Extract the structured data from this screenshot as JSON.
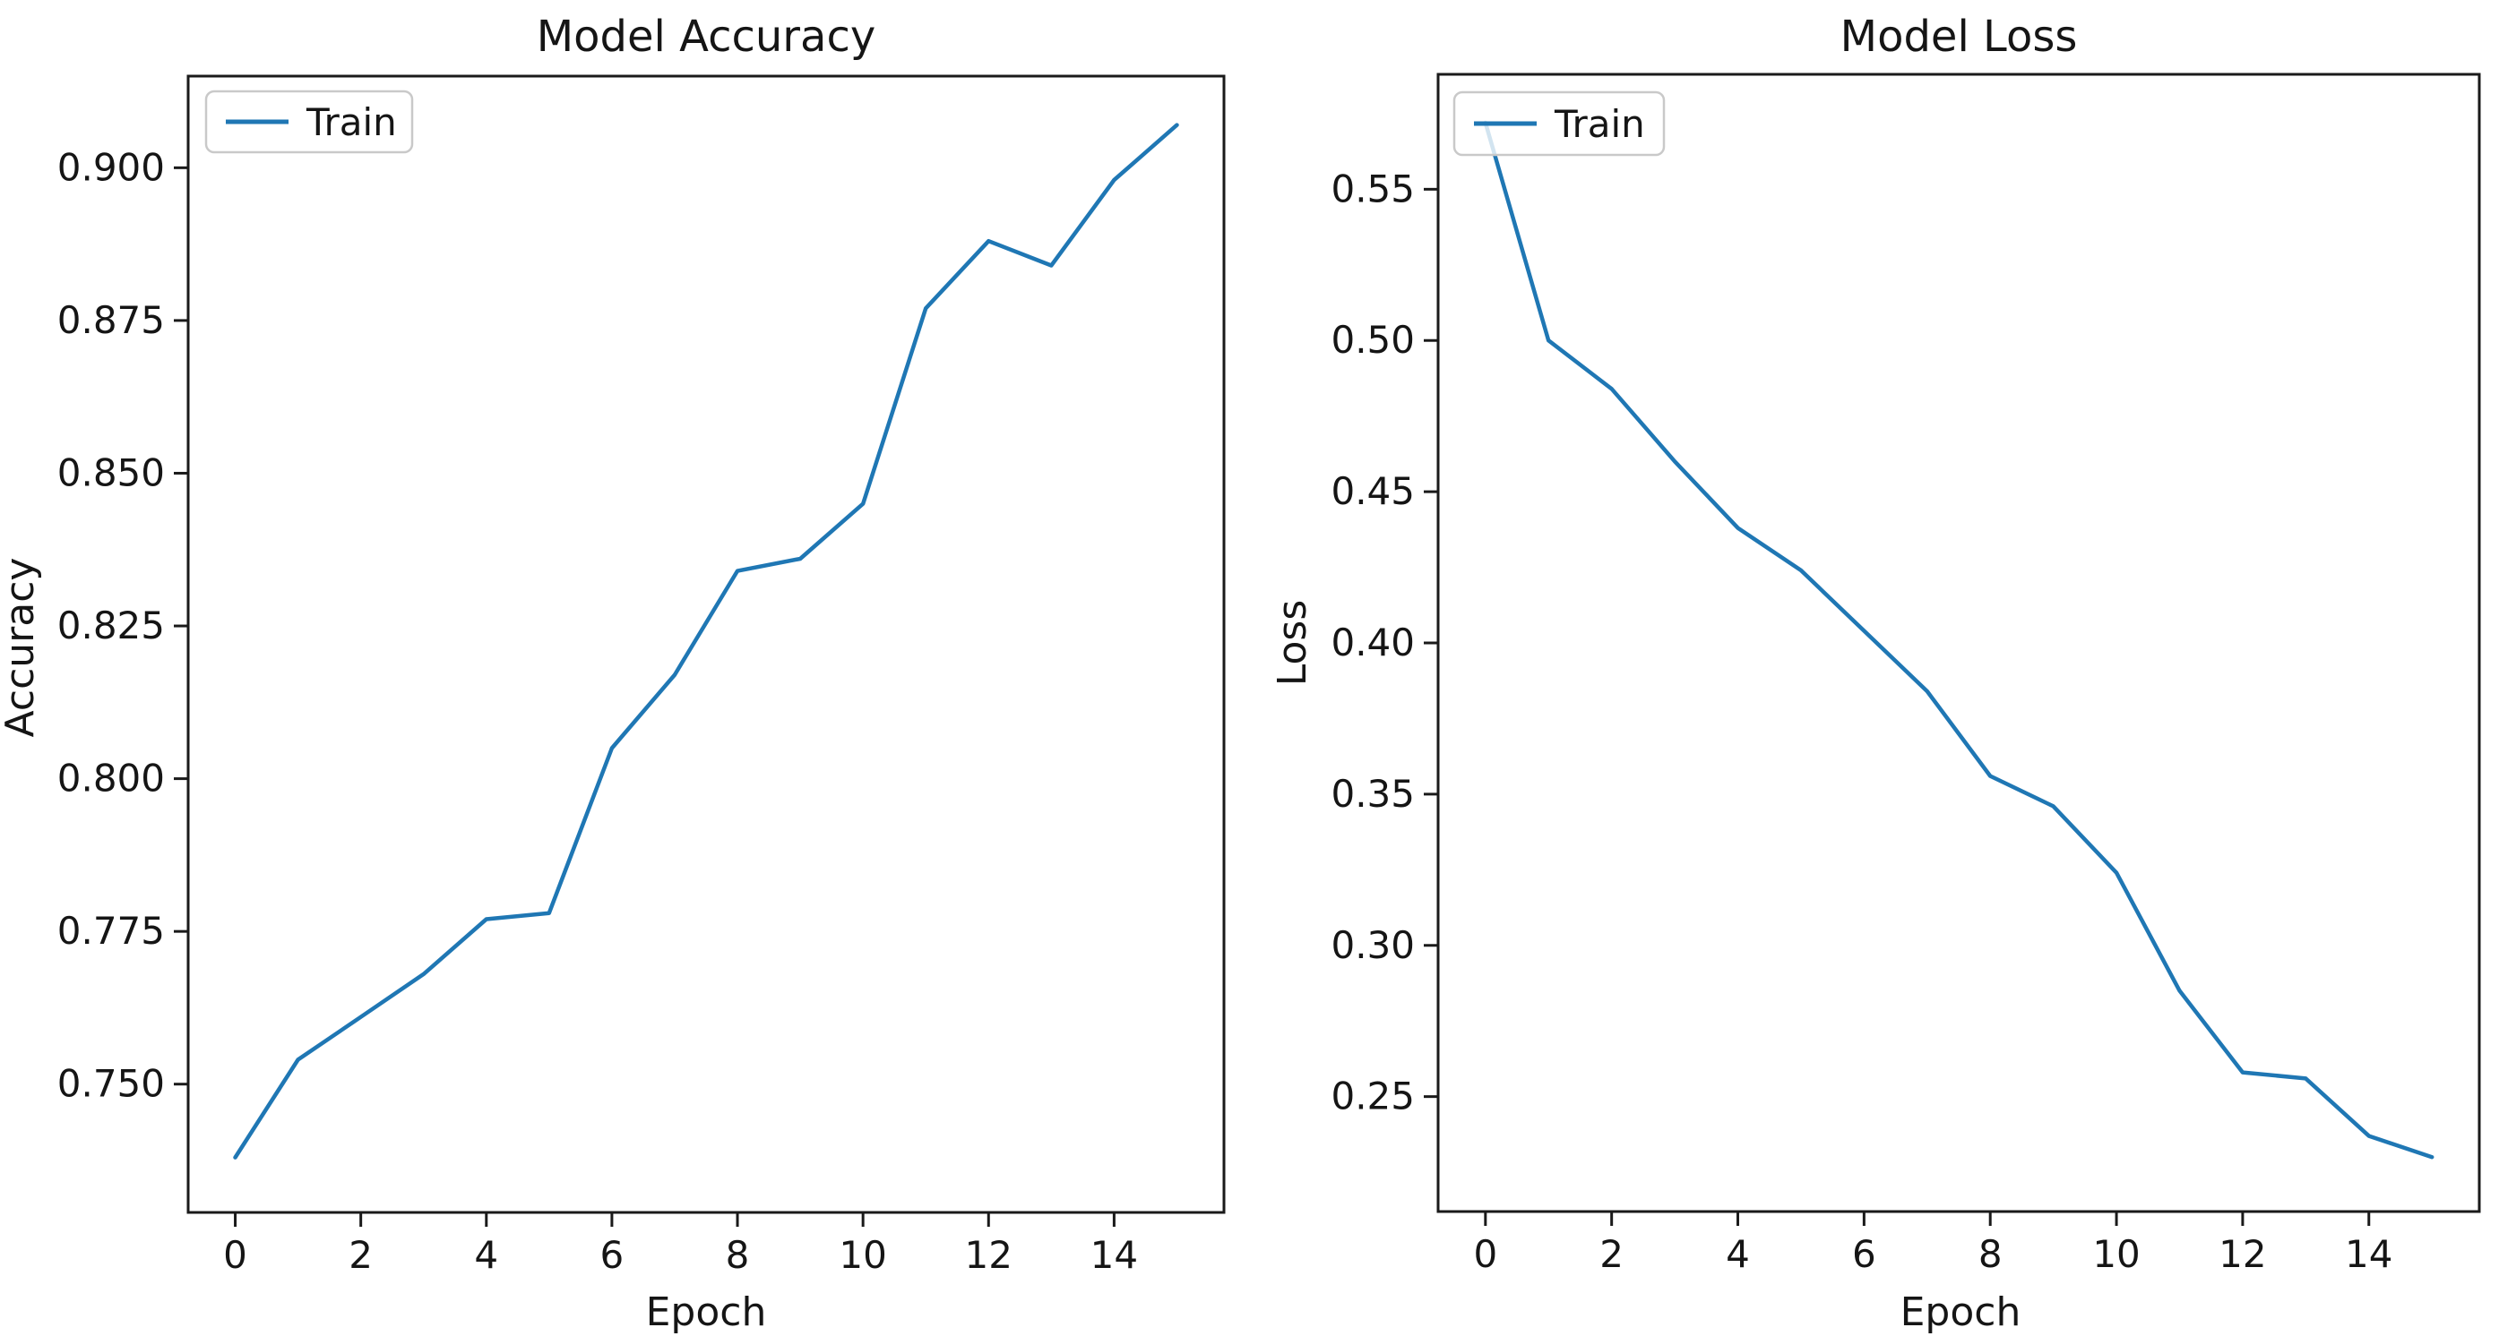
{
  "figure": {
    "background": "#ffffff",
    "text_color": "#151515",
    "spine_color": "#1a1a1a",
    "accent_line_color": "#1f77b4"
  },
  "chart_data": [
    {
      "type": "line",
      "name": "model-accuracy",
      "title": "Model Accuracy",
      "xlabel": "Epoch",
      "ylabel": "Accuracy",
      "x": [
        0,
        1,
        2,
        3,
        4,
        5,
        6,
        7,
        8,
        9,
        10,
        11,
        12,
        13,
        14,
        15
      ],
      "series": [
        {
          "name": "Train",
          "color": "#1f77b4",
          "values": [
            0.738,
            0.754,
            0.761,
            0.768,
            0.777,
            0.778,
            0.805,
            0.817,
            0.834,
            0.836,
            0.845,
            0.877,
            0.888,
            0.884,
            0.898,
            0.907
          ]
        }
      ],
      "xlim": [
        -0.75,
        15.75
      ],
      "ylim": [
        0.729,
        0.915
      ],
      "xtick_labels": [
        "0",
        "2",
        "4",
        "6",
        "8",
        "10",
        "12",
        "14"
      ],
      "ytick_labels": [
        "0.750",
        "0.775",
        "0.800",
        "0.825",
        "0.850",
        "0.875",
        "0.900"
      ],
      "grid": false,
      "legend": {
        "labels": [
          "Train"
        ],
        "position": "upper left"
      }
    },
    {
      "type": "line",
      "name": "model-loss",
      "title": "Model Loss",
      "xlabel": "Epoch",
      "ylabel": "Loss",
      "x": [
        0,
        1,
        2,
        3,
        4,
        5,
        6,
        7,
        8,
        9,
        10,
        11,
        12,
        13,
        14,
        15
      ],
      "series": [
        {
          "name": "Train",
          "color": "#1f77b4",
          "values": [
            0.572,
            0.5,
            0.484,
            0.46,
            0.438,
            0.424,
            0.404,
            0.384,
            0.356,
            0.346,
            0.324,
            0.285,
            0.258,
            0.256,
            0.237,
            0.23
          ]
        }
      ],
      "xlim": [
        -0.75,
        15.75
      ],
      "ylim": [
        0.212,
        0.588
      ],
      "xtick_labels": [
        "0",
        "2",
        "4",
        "6",
        "8",
        "10",
        "12",
        "14"
      ],
      "ytick_labels": [
        "0.25",
        "0.30",
        "0.35",
        "0.40",
        "0.45",
        "0.50",
        "0.55"
      ],
      "grid": false,
      "legend": {
        "labels": [
          "Train"
        ],
        "position": "upper left"
      }
    }
  ]
}
